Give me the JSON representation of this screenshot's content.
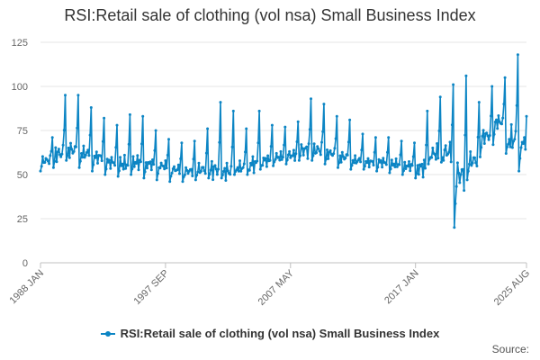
{
  "chart_data": {
    "type": "line",
    "title": "RSI:Retail sale of clothing (vol nsa) Small Business Index",
    "xlabel": "",
    "ylabel": "",
    "ylim": [
      0,
      125
    ],
    "yticks": [
      0,
      25,
      50,
      75,
      100,
      125
    ],
    "xtick_labels": [
      "1988 JAN",
      "1997 SEP",
      "2007 MAY",
      "2017 JAN",
      "2025 AUG"
    ],
    "xlim": [
      "1988-01",
      "2025-08"
    ],
    "grid": "horizontal",
    "legend_position": "bottom",
    "series": [
      {
        "name": "RSI:Retail sale of clothing (vol nsa) Small Business Index",
        "color": "#0c85c4",
        "x": [
          "1988",
          "1989",
          "1990",
          "1991",
          "1992",
          "1993",
          "1994",
          "1995",
          "1996",
          "1997",
          "1998",
          "1999",
          "2000",
          "2001",
          "2002",
          "2003",
          "2004",
          "2005",
          "2006",
          "2007",
          "2008",
          "2009",
          "2010",
          "2011",
          "2012",
          "2013",
          "2014",
          "2015",
          "2016",
          "2017",
          "2018",
          "2019",
          "2020",
          "2021",
          "2022",
          "2023",
          "2024",
          "2025"
        ],
        "typical": [
          58,
          62,
          64,
          62,
          60,
          57,
          56,
          57,
          56,
          55,
          53,
          52,
          53,
          53,
          52,
          54,
          56,
          58,
          60,
          61,
          64,
          64,
          62,
          60,
          58,
          57,
          57,
          56,
          55,
          54,
          62,
          63,
          50,
          58,
          72,
          80,
          70,
          68
        ],
        "peak": [
          71,
          95,
          95,
          88,
          82,
          78,
          84,
          83,
          75,
          70,
          68,
          69,
          76,
          91,
          86,
          76,
          86,
          78,
          77,
          80,
          93,
          90,
          83,
          81,
          73,
          71,
          71,
          69,
          68,
          86,
          94,
          101,
          106,
          91,
          100,
          105,
          118,
          90
        ],
        "trough": [
          52,
          54,
          58,
          54,
          52,
          50,
          49,
          50,
          48,
          47,
          46,
          46,
          47,
          48,
          48,
          50,
          50,
          53,
          55,
          56,
          58,
          58,
          56,
          54,
          53,
          53,
          52,
          51,
          50,
          48,
          56,
          57,
          20,
          47,
          60,
          67,
          62,
          52
        ],
        "last_value": 83
      }
    ]
  },
  "legend": {
    "label": "RSI:Retail sale of clothing (vol nsa) Small Business Index"
  },
  "credit": "Source:"
}
